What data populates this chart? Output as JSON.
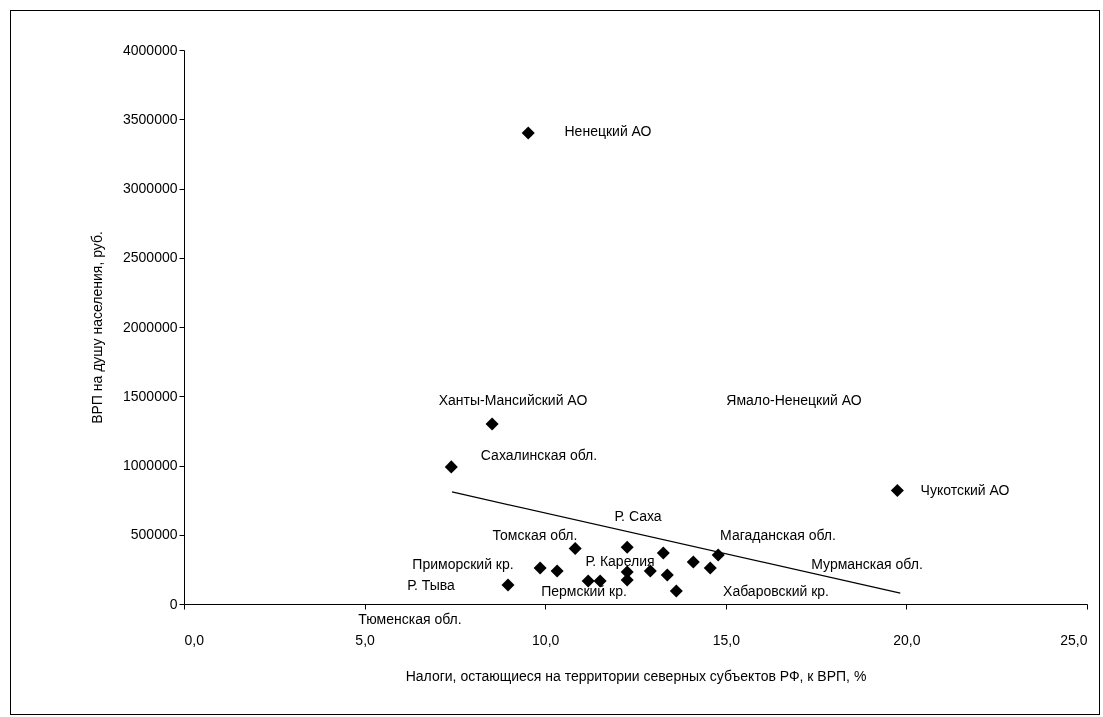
{
  "chart_data": {
    "type": "scatter",
    "xlabel": "Налоги, остающиеся на территории северных субъектов РФ, к ВРП, %",
    "ylabel": "ВРП на душу населения, руб.",
    "xlim": [
      0,
      25
    ],
    "xticks": [
      {
        "value": 0,
        "label": "0,0"
      },
      {
        "value": 5,
        "label": "5,0"
      },
      {
        "value": 10,
        "label": "10,0"
      },
      {
        "value": 15,
        "label": "15,0"
      },
      {
        "value": 20,
        "label": "20,0"
      },
      {
        "value": 25,
        "label": "25,0"
      }
    ],
    "ylim": [
      0,
      4000000
    ],
    "yticks": [
      0,
      500000,
      1000000,
      1500000,
      2000000,
      2500000,
      3000000,
      3500000,
      4000000
    ],
    "grid": false,
    "marker": "diamond",
    "series": [
      {
        "type": "scatter",
        "color": "#000000",
        "x": [
          9.53,
          8.53,
          7.4,
          19.75,
          10.83,
          12.27,
          9.86,
          10.33,
          11.19,
          11.52,
          12.27,
          12.27,
          12.91,
          13.27,
          13.38,
          13.63,
          14.1,
          14.57,
          14.79,
          8.97
        ],
        "values": [
          3400000,
          1300000,
          990000,
          820000,
          400000,
          410000,
          260000,
          238000,
          166000,
          166000,
          231000,
          173000,
          238000,
          368000,
          209000,
          94000,
          303000,
          260000,
          354000,
          137000
        ]
      },
      {
        "type": "line",
        "color": "#000000",
        "marker": "none",
        "line_style": "solid",
        "x": [
          7.42,
          19.83
        ],
        "values": [
          809000,
          79000
        ]
      }
    ],
    "annotations": [
      "Ненецкий АО",
      "Ханты-Мансийский АО",
      "Ямало-Ненецкий АО",
      "Сахалинская обл.",
      "Чукотский АО",
      "Р. Саха",
      "Томская обл.",
      "Магаданская обл.",
      "Приморский кр.",
      "Р. Карелия",
      "Мурманская обл.",
      "Р. Тыва",
      "Пермский кр.",
      "Хабаровский кр.",
      "Тюменская обл."
    ]
  }
}
